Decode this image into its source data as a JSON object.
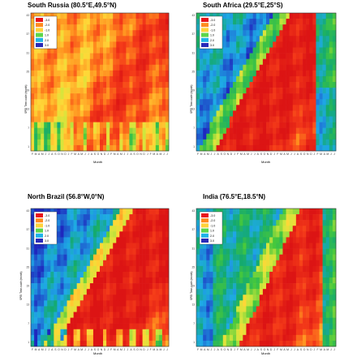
{
  "legend": {
    "colors": [
      "#e8141b",
      "#ff8a1e",
      "#ffd23a",
      "#5cd64a",
      "#20b3e8",
      "#2a2ab8"
    ],
    "labels": [
      "-3.0",
      "-2.0",
      "-1.0",
      "1.0",
      "2.0",
      "3.0"
    ]
  },
  "axes": {
    "ylabel": "SPEI Time-scale (month)",
    "xlabel": "Month",
    "yticks": [
      "1",
      "7",
      "13",
      "19",
      "25",
      "31",
      "37",
      "43"
    ],
    "xticks": [
      "F",
      "M",
      "A",
      "M",
      "J",
      "J",
      "A",
      "S",
      "O",
      "N",
      "D",
      "J",
      "F",
      "M",
      "A",
      "M",
      "J",
      "J",
      "A",
      "S",
      "O",
      "N",
      "D",
      "J",
      "F",
      "M",
      "A",
      "M",
      "J",
      "J",
      "A",
      "S",
      "O",
      "N",
      "D",
      "J",
      "F",
      "M",
      "A",
      "M",
      "J",
      "J"
    ]
  },
  "chart_data": [
    {
      "type": "heatmap",
      "title": "South Russia (80.5°E,49.5°N)",
      "pattern": "russia"
    },
    {
      "type": "heatmap",
      "title": "South Africa (29.5°E,25°S)",
      "pattern": "africa"
    },
    {
      "type": "heatmap",
      "title": "North Brazil (56.8°W,0°N)",
      "pattern": "brazil"
    },
    {
      "type": "heatmap",
      "title": "India (76.5°E,18.5°N)",
      "pattern": "india"
    }
  ]
}
